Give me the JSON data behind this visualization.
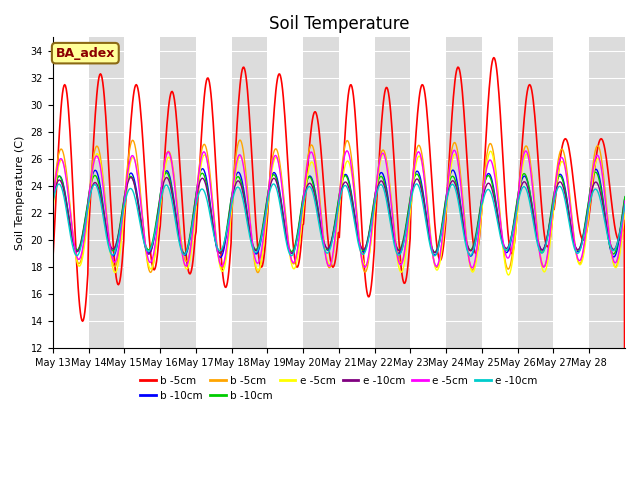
{
  "title": "Soil Temperature",
  "ylabel": "Soil Temperature (C)",
  "ylim": [
    12,
    35
  ],
  "yticks": [
    12,
    14,
    16,
    18,
    20,
    22,
    24,
    26,
    28,
    30,
    32,
    34
  ],
  "annotation_text": "BA_adex",
  "annotation_color": "#8B0000",
  "annotation_bg": "#FFFF99",
  "annotation_edge": "#8B6914",
  "bg_color": "#FFFFFF",
  "alt_bg_color": "#DCDCDC",
  "grid_color": "#C8C8C8",
  "xtick_labels": [
    "May 13",
    "May 14",
    "May 15",
    "May 16",
    "May 17",
    "May 18",
    "May 19",
    "May 20",
    "May 21",
    "May 22",
    "May 23",
    "May 24",
    "May 25",
    "May 26",
    "May 27",
    "May 28"
  ],
  "series": [
    {
      "label": "b -5cm",
      "color": "#FF0000",
      "lw": 1.2,
      "phase": 0.0,
      "amp_base": 7.5,
      "mean": 22.5,
      "deep": false
    },
    {
      "label": "b -10cm",
      "color": "#0000FF",
      "lw": 1.0,
      "phase": 0.4,
      "amp_base": 3.0,
      "mean": 22.0,
      "deep": true
    },
    {
      "label": "b -5cm",
      "color": "#FFA500",
      "lw": 1.0,
      "phase": 0.1,
      "amp_base": 4.5,
      "mean": 22.5,
      "deep": false
    },
    {
      "label": "b -10cm",
      "color": "#00CC00",
      "lw": 1.0,
      "phase": 0.45,
      "amp_base": 2.8,
      "mean": 22.0,
      "deep": true
    },
    {
      "label": "e -5cm",
      "color": "#FFFF00",
      "lw": 1.0,
      "phase": 0.05,
      "amp_base": 4.2,
      "mean": 22.0,
      "deep": false
    },
    {
      "label": "e -10cm",
      "color": "#800080",
      "lw": 1.0,
      "phase": 0.42,
      "amp_base": 2.6,
      "mean": 21.8,
      "deep": true
    },
    {
      "label": "e -5cm",
      "color": "#FF00FF",
      "lw": 1.0,
      "phase": 0.15,
      "amp_base": 4.0,
      "mean": 22.3,
      "deep": false
    },
    {
      "label": "e -10cm",
      "color": "#00CCCC",
      "lw": 1.0,
      "phase": 0.48,
      "amp_base": 2.5,
      "mean": 21.5,
      "deep": true
    }
  ],
  "red_daily_peaks": [
    31.5,
    32.3,
    31.5,
    31.0,
    32.0,
    32.8,
    32.3,
    29.5,
    31.5,
    31.3,
    31.5,
    32.8,
    33.5,
    31.5,
    27.5,
    27.5
  ],
  "red_daily_mins": [
    14.0,
    16.7,
    17.8,
    17.5,
    16.5,
    18.0,
    18.0,
    18.0,
    15.8,
    16.8,
    18.5,
    19.0,
    19.0,
    19.5,
    20.0,
    20.0
  ]
}
